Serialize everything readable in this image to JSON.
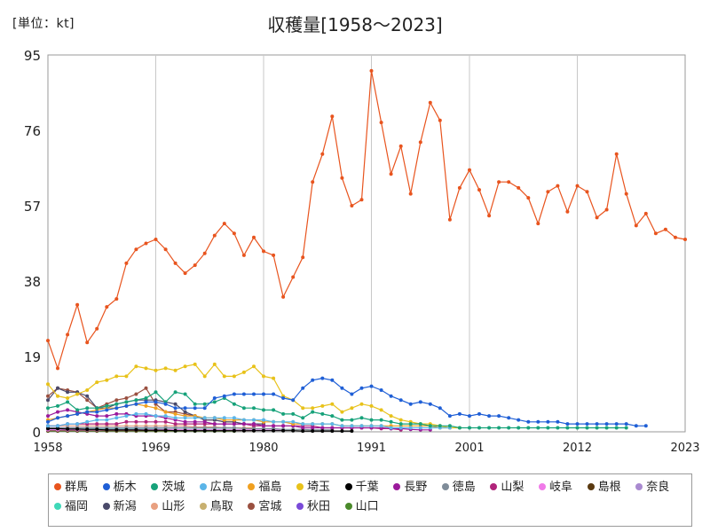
{
  "chart_data": {
    "type": "line",
    "unit_label": "[単位：kt]",
    "title": "収穫量[1958～2023]",
    "xlabel": "",
    "ylabel": "",
    "x_ticks": [
      "1958",
      "1969",
      "1980",
      "1991",
      "2001",
      "2012",
      "2023"
    ],
    "y_ticks": [
      "0",
      "19",
      "38",
      "57",
      "76",
      "95"
    ],
    "ylim": [
      0,
      95
    ],
    "xlim": [
      1958,
      2023
    ],
    "grid": "vertical",
    "legend_position": "bottom",
    "series": [
      {
        "name": "群馬",
        "color": "#e8541e",
        "x_start": 1958,
        "values": [
          23,
          16,
          24.5,
          32,
          22.5,
          26,
          31.5,
          33.5,
          42.5,
          46,
          47.5,
          48.5,
          46,
          42.5,
          40,
          42,
          45,
          49.5,
          52.5,
          50,
          44.5,
          49,
          45.5,
          44.5,
          34,
          39,
          44,
          63,
          70,
          79.5,
          64,
          57,
          58.5,
          91,
          78,
          65,
          72,
          60,
          73,
          83,
          78.5,
          53.5,
          61.5,
          66,
          61,
          54.5,
          63,
          63,
          61.5,
          59,
          52.5,
          60.5,
          62,
          55.5,
          62,
          60.5,
          54,
          56,
          70,
          60,
          52,
          55,
          50,
          51,
          49,
          48.5
        ]
      },
      {
        "name": "栃木",
        "color": "#1f5fd6",
        "x_start": 1958,
        "values": [
          2.5,
          3.5,
          4,
          4.5,
          5,
          5,
          5.5,
          6,
          6.5,
          7,
          7.5,
          7.5,
          7,
          6,
          6,
          6,
          6,
          8.5,
          9,
          9.5,
          9.5,
          9.5,
          9.5,
          9.5,
          8.5,
          8,
          11,
          13,
          13.5,
          13,
          11,
          9.5,
          11,
          11.5,
          10.5,
          9,
          8,
          7,
          7.5,
          7,
          6,
          4,
          4.5,
          4,
          4.5,
          4,
          4,
          3.5,
          3,
          2.5,
          2.5,
          2.5,
          2.5,
          2,
          2,
          2,
          2,
          2,
          2,
          2,
          1.5,
          1.5
        ]
      },
      {
        "name": "茨城",
        "color": "#17a27a",
        "x_start": 1958,
        "values": [
          6,
          6.5,
          7.5,
          5.5,
          6,
          6,
          6.5,
          7,
          7.5,
          8,
          8.5,
          10,
          7.5,
          10,
          9.5,
          7,
          7,
          7.5,
          8.5,
          7,
          6,
          6,
          5.5,
          5.5,
          4.5,
          4.5,
          3.5,
          5,
          4.5,
          4,
          3,
          3,
          3.5,
          3,
          3,
          2.5,
          2,
          2,
          2,
          1.5,
          1.5,
          1.5,
          1,
          1,
          1,
          1,
          1,
          1,
          1,
          1,
          1,
          1,
          1,
          1,
          1,
          1,
          1,
          1,
          1,
          1
        ]
      },
      {
        "name": "広島",
        "color": "#5bb5e8",
        "x_start": 1958,
        "values": [
          1.5,
          1.5,
          2,
          2,
          2.5,
          3,
          3,
          3.5,
          4,
          4.5,
          4.5,
          4,
          4,
          3.5,
          3.5,
          3.5,
          3.5,
          3.5,
          3.5,
          3.5,
          3,
          3,
          3,
          2.5,
          2.5,
          2.5,
          2,
          2,
          2,
          2,
          1.5,
          1.5,
          1.5,
          1.5,
          1.5,
          1,
          1,
          1,
          1,
          1,
          1,
          1
        ]
      },
      {
        "name": "福島",
        "color": "#f0a020",
        "x_start": 1958,
        "values": [
          3,
          3.5,
          4,
          4.5,
          5,
          5.5,
          6,
          6,
          6.5,
          7,
          6.5,
          6,
          5,
          4.5,
          4,
          4,
          3.5,
          3.5,
          3,
          3,
          3,
          3,
          2.5,
          2.5,
          2.5,
          2,
          2,
          2,
          2,
          2,
          1.5,
          1.5,
          1.5,
          1.5,
          1.5,
          1.5,
          1.5,
          1.5,
          1.5,
          1.5,
          1,
          1
        ]
      },
      {
        "name": "埼玉",
        "color": "#e8c21a",
        "x_start": 1958,
        "values": [
          12,
          9,
          8.5,
          9.5,
          10.5,
          12.5,
          13,
          14,
          14,
          16.5,
          16,
          15.5,
          16,
          15.5,
          16.5,
          17,
          14,
          17,
          14,
          14,
          15,
          16.5,
          14,
          13.5,
          9,
          8,
          6,
          6,
          6.5,
          7,
          5,
          6,
          7,
          6.5,
          5.5,
          4,
          3,
          2.5,
          2,
          2,
          1.5,
          1,
          1
        ]
      },
      {
        "name": "千葉",
        "color": "#000000",
        "x_start": 1958,
        "values": [
          0.8,
          0.8,
          0.7,
          0.7,
          0.6,
          0.6,
          0.5,
          0.5,
          0.5,
          0.5,
          0.4,
          0.4,
          0.4,
          0.3,
          0.3,
          0.3,
          0.3,
          0.3,
          0.3,
          0.3,
          0.3,
          0.3,
          0.3,
          0.3,
          0.3,
          0.3,
          0.2,
          0.2,
          0.2,
          0.2,
          0.2,
          0.2
        ]
      },
      {
        "name": "長野",
        "color": "#9b1a9b",
        "x_start": 1958,
        "values": [
          4,
          5,
          5.5,
          5,
          4.5,
          4,
          4,
          4.5,
          4.5,
          4,
          4,
          4,
          3.5,
          3,
          2.5,
          2.5,
          2.5,
          2,
          2,
          2,
          2,
          2,
          1.5,
          1.5,
          1.5,
          1.5,
          1,
          1,
          1,
          1,
          1,
          1,
          1,
          1,
          1,
          0.8,
          0.8,
          0.6,
          0.5,
          0.5
        ]
      },
      {
        "name": "徳島",
        "color": "#7f8c99",
        "x_start": 1958,
        "values": [
          1,
          1,
          1,
          1,
          1,
          1,
          1,
          1,
          1,
          1,
          1,
          1,
          1,
          1,
          1,
          1,
          1,
          1,
          1,
          1,
          0.8,
          0.8,
          0.8,
          0.8,
          0.6,
          0.6,
          0.6,
          0.5,
          0.5,
          0.5
        ]
      },
      {
        "name": "山梨",
        "color": "#b0247a",
        "x_start": 1958,
        "values": [
          1.5,
          1.5,
          2,
          2,
          2,
          2,
          2,
          2,
          2.5,
          2.5,
          2.5,
          2.5,
          2.5,
          2,
          2,
          2,
          2,
          2,
          2,
          2,
          2,
          1.5,
          1.5,
          1.5,
          1.5,
          1.5,
          1.5,
          1.5,
          1,
          1,
          1,
          1,
          1,
          1,
          0.8,
          0.8,
          0.5
        ]
      },
      {
        "name": "岐阜",
        "color": "#f07ae8",
        "x_start": 1958,
        "values": [
          0.5,
          0.5,
          0.5,
          0.5,
          0.5,
          0.5,
          0.5,
          0.5,
          0.5,
          0.5,
          0.5,
          0.5,
          0.5,
          0.5,
          0.5,
          0.5,
          0.5,
          0.5,
          0.5,
          0.5,
          0.5,
          0.5,
          0.5,
          0.5,
          0.5
        ]
      },
      {
        "name": "島根",
        "color": "#5a3a10",
        "x_start": 1958,
        "values": [
          0.3,
          0.3,
          0.3,
          0.3,
          0.3,
          0.3,
          0.3,
          0.3,
          0.3,
          0.3,
          0.3,
          0.3,
          0.3,
          0.3,
          0.3,
          0.3,
          0.3,
          0.3,
          0.3,
          0.3,
          0.3,
          0.3
        ]
      },
      {
        "name": "奈良",
        "color": "#a98ad0",
        "x_start": 1958,
        "values": [
          0.6,
          0.6,
          0.6,
          0.6,
          0.6,
          0.6,
          0.6,
          0.6,
          0.6,
          0.6,
          0.6,
          0.6,
          0.6,
          0.6,
          0.5,
          0.5,
          0.5,
          0.5,
          0.5,
          0.5,
          0.5,
          0.5
        ]
      },
      {
        "name": "福岡",
        "color": "#3fd8b8",
        "x_start": 1958,
        "values": [
          0.7,
          0.7,
          0.7,
          0.7,
          0.7,
          0.7,
          0.7,
          0.7,
          0.7,
          0.7,
          0.7,
          0.7,
          0.6,
          0.6,
          0.6,
          0.6,
          0.6,
          0.6,
          0.6,
          0.6,
          0.5,
          0.5,
          0.5,
          0.5,
          0.5
        ]
      },
      {
        "name": "新潟",
        "color": "#4a4a6a",
        "x_start": 1958,
        "values": [
          8,
          11,
          10,
          10,
          9,
          6,
          6,
          7,
          7.5,
          8,
          8,
          8,
          7.5,
          7,
          5,
          4,
          3,
          3,
          2.5,
          2.5,
          2,
          2,
          2
        ]
      },
      {
        "name": "山形",
        "color": "#e8a080",
        "x_start": 1958,
        "values": [
          1.5,
          1.5,
          1.5,
          1.5,
          1.5,
          1.5,
          1.5,
          1.5,
          1.5,
          1.5,
          1.5,
          1.5,
          1.5,
          1.5,
          1.5,
          1.2,
          1.2,
          1.2,
          1,
          1,
          1,
          1
        ]
      },
      {
        "name": "鳥取",
        "color": "#c8b070",
        "x_start": 1958,
        "values": [
          0.4,
          0.4,
          0.4,
          0.4,
          0.4,
          0.4,
          0.4,
          0.4,
          0.4,
          0.4,
          0.4,
          0.4,
          0.4,
          0.4,
          0.4,
          0.4,
          0.4,
          0.4,
          0.4,
          0.4
        ]
      },
      {
        "name": "宮城",
        "color": "#9a5040",
        "x_start": 1958,
        "values": [
          9,
          11,
          10.5,
          10,
          8,
          6,
          7,
          8,
          8.5,
          9.5,
          11,
          7,
          5,
          5,
          4.5,
          4,
          3,
          3,
          2.5,
          2.5
        ]
      },
      {
        "name": "秋田",
        "color": "#7a4ad8",
        "x_start": 1958,
        "values": [
          1,
          1,
          1,
          1,
          1,
          1,
          1,
          1,
          1,
          1,
          1,
          1,
          1,
          1,
          1,
          1,
          1,
          1,
          1,
          1
        ]
      },
      {
        "name": "山口",
        "color": "#4a8a2a",
        "x_start": 1958,
        "values": [
          0.2,
          0.2,
          0.2,
          0.2,
          0.2,
          0.2,
          0.2,
          0.2,
          0.2,
          0.2,
          0.2,
          0.2,
          0.2,
          0.2,
          0.2,
          0.2,
          0.2,
          0.2,
          0.2,
          0.2
        ]
      }
    ]
  }
}
